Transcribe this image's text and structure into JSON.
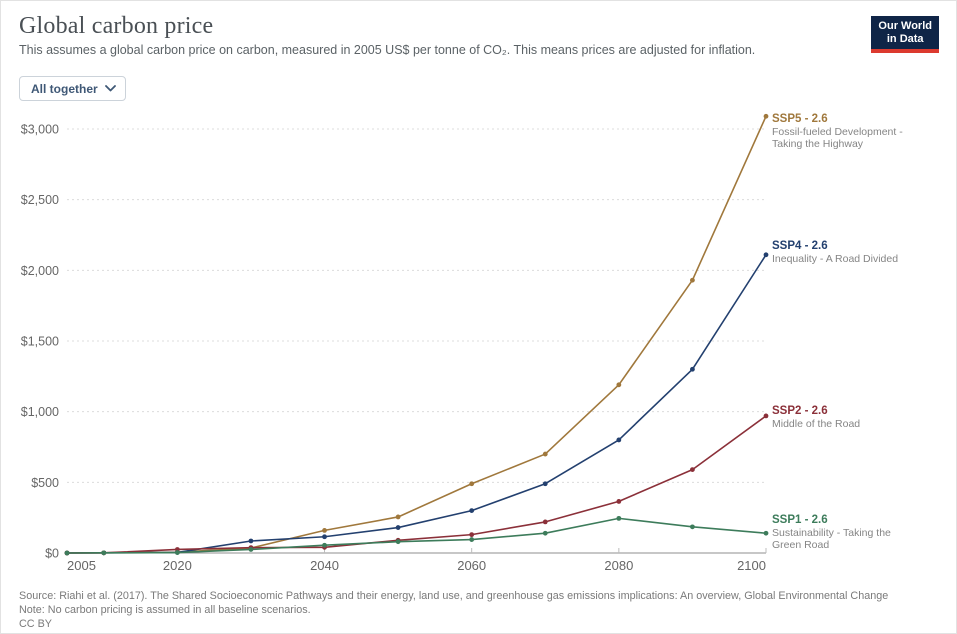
{
  "header": {
    "title": "Global carbon price",
    "subtitle": "This assumes a global carbon price on carbon, measured in 2005 US$ per tonne of CO₂. This means prices are adjusted for inflation.",
    "logo": {
      "line1": "Our World",
      "line2": "in Data",
      "bg_color": "#0f2547",
      "accent_color": "#dc3a2f"
    }
  },
  "controls": {
    "dropdown_value": "All together"
  },
  "chart_data": {
    "type": "line",
    "title": "Global carbon price",
    "xlabel": "",
    "ylabel": "",
    "x": [
      2005,
      2010,
      2020,
      2030,
      2040,
      2050,
      2060,
      2070,
      2080,
      2090,
      2100
    ],
    "xlim": [
      2005,
      2100
    ],
    "ylim": [
      0,
      3000
    ],
    "xticks": [
      2005,
      2020,
      2040,
      2060,
      2080,
      2100
    ],
    "yticks": [
      {
        "value": 0,
        "label": "$0"
      },
      {
        "value": 500,
        "label": "$500"
      },
      {
        "value": 1000,
        "label": "$1,000"
      },
      {
        "value": 1500,
        "label": "$1,500"
      },
      {
        "value": 2000,
        "label": "$2,000"
      },
      {
        "value": 2500,
        "label": "$2,500"
      },
      {
        "value": 3000,
        "label": "$3,000"
      }
    ],
    "grid": "horizontal-dashed",
    "legend_position": "right-end-labels",
    "series": [
      {
        "name": "SSP5 - 2.6",
        "description": "Fossil-fueled Development - Taking the Highway",
        "color": "#A0783C",
        "values": [
          0,
          1,
          6,
          35,
          160,
          255,
          490,
          700,
          1190,
          1930,
          3090
        ]
      },
      {
        "name": "SSP4 - 2.6",
        "description": "Inequality - A Road Divided",
        "color": "#23406F",
        "values": [
          0,
          1,
          4,
          85,
          115,
          180,
          300,
          490,
          800,
          1300,
          2110
        ]
      },
      {
        "name": "SSP2 - 2.6",
        "description": "Middle of the Road",
        "color": "#8B3039",
        "values": [
          0,
          1,
          25,
          38,
          40,
          90,
          130,
          220,
          365,
          590,
          970
        ]
      },
      {
        "name": "SSP1 - 2.6",
        "description": "Sustainability - Taking the Green Road",
        "color": "#3D7C5B",
        "values": [
          0,
          1,
          3,
          25,
          55,
          80,
          95,
          140,
          245,
          185,
          140
        ]
      }
    ]
  },
  "footer": {
    "source": "Source: Riahi et al. (2017). The Shared Socioeconomic Pathways and their energy, land use, and greenhouse gas emissions implications: An overview, Global Environmental Change",
    "note": "Note: No carbon pricing is assumed in all baseline scenarios.",
    "license": "CC BY"
  }
}
